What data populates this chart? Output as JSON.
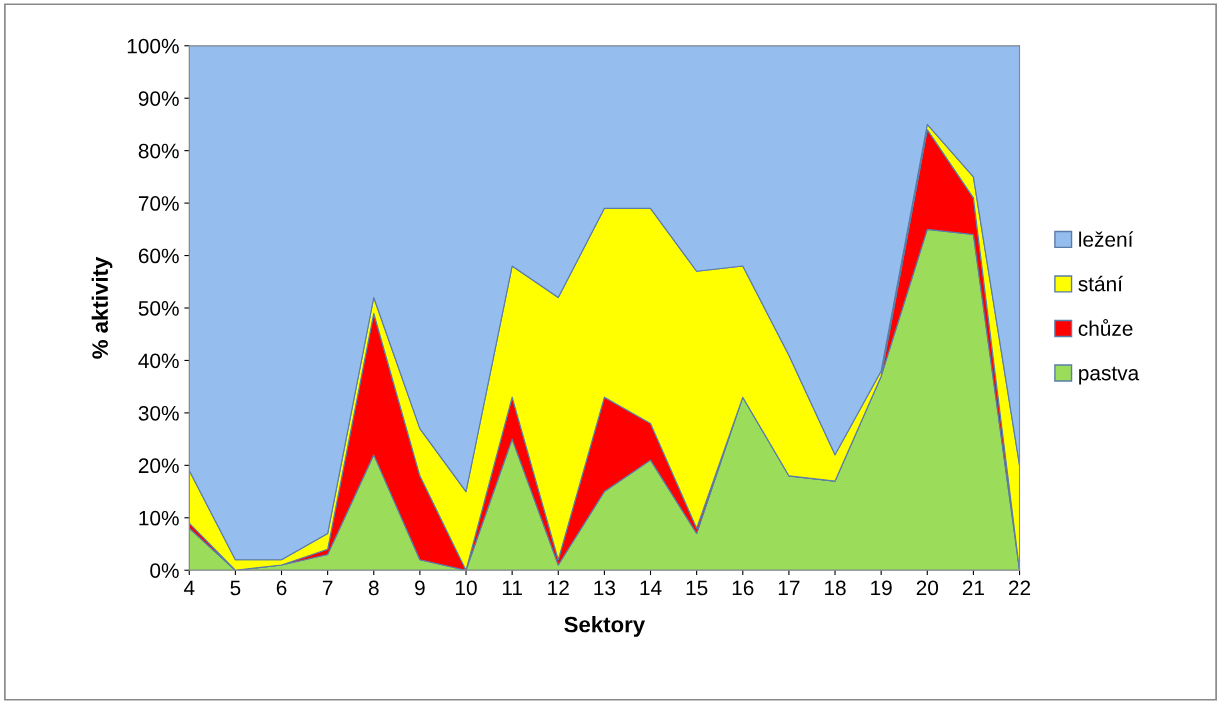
{
  "chart_data": {
    "type": "area",
    "stacked": true,
    "xlabel": "Sektory",
    "ylabel": "% aktivity",
    "categories": [
      "4",
      "5",
      "6",
      "7",
      "8",
      "9",
      "10",
      "11",
      "12",
      "13",
      "14",
      "15",
      "16",
      "17",
      "18",
      "19",
      "20",
      "21",
      "22"
    ],
    "series": [
      {
        "name": "pastva",
        "color": "#9bdc5a",
        "values": [
          8,
          0,
          1,
          3,
          22,
          2,
          0,
          25,
          1,
          15,
          21,
          7,
          33,
          18,
          17,
          37,
          65,
          64,
          0
        ]
      },
      {
        "name": "chůze",
        "color": "#ff0000",
        "values": [
          1,
          0,
          0,
          1,
          27,
          16,
          0,
          8,
          1,
          18,
          7,
          1,
          0,
          0,
          0,
          0,
          19,
          7,
          0
        ]
      },
      {
        "name": "stání",
        "color": "#ffff00",
        "values": [
          10,
          2,
          1,
          3,
          3,
          9,
          15,
          25,
          50,
          36,
          41,
          49,
          25,
          23,
          5,
          1,
          1,
          4,
          20
        ]
      },
      {
        "name": "ležení",
        "color": "#95bdee",
        "values": [
          81,
          98,
          98,
          93,
          48,
          73,
          85,
          42,
          48,
          31,
          31,
          43,
          42,
          59,
          78,
          62,
          15,
          25,
          80
        ]
      }
    ],
    "ylim": [
      0,
      100
    ],
    "yticks": [
      {
        "value": 0,
        "label": "0%"
      },
      {
        "value": 10,
        "label": "10%"
      },
      {
        "value": 20,
        "label": "20%"
      },
      {
        "value": 30,
        "label": "30%"
      },
      {
        "value": 40,
        "label": "40%"
      },
      {
        "value": 50,
        "label": "50%"
      },
      {
        "value": 60,
        "label": "60%"
      },
      {
        "value": 70,
        "label": "70%"
      },
      {
        "value": 80,
        "label": "80%"
      },
      {
        "value": 90,
        "label": "90%"
      },
      {
        "value": 100,
        "label": "100%"
      }
    ],
    "grid": false,
    "legend": "right"
  }
}
